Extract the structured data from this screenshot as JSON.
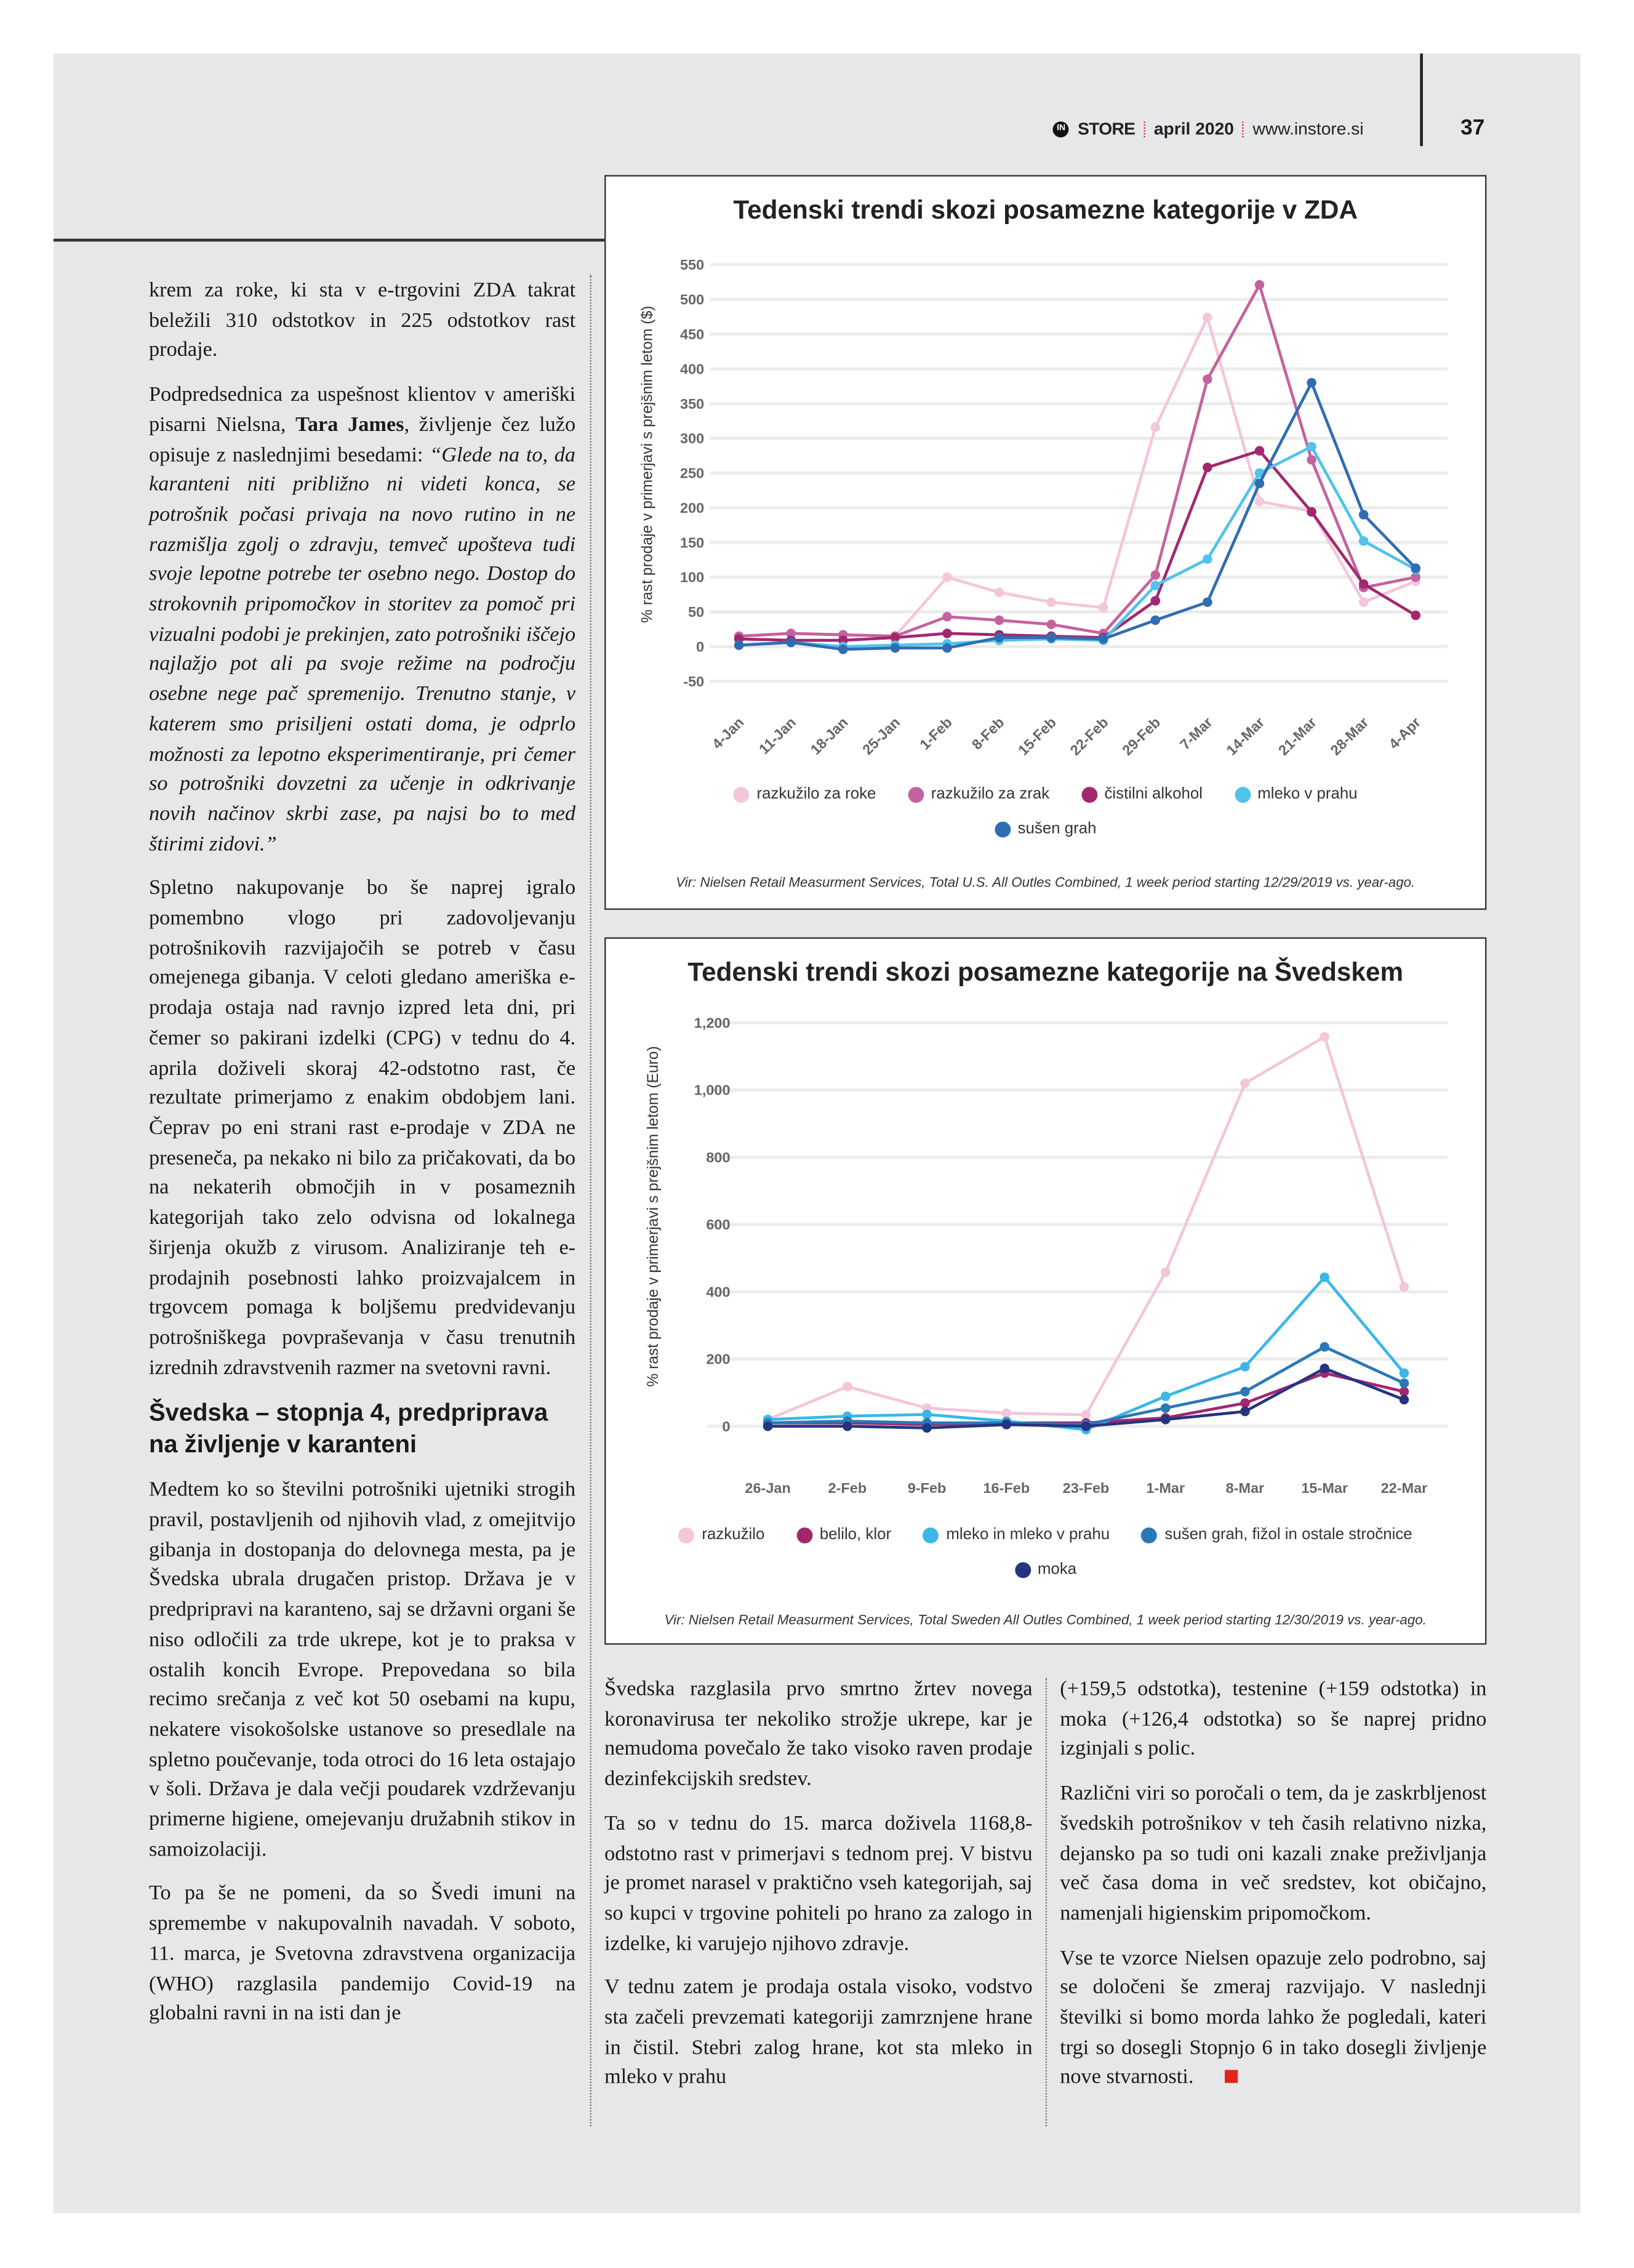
{
  "header": {
    "brand": "STORE",
    "brand_logo": "IN",
    "issue": "april 2020",
    "url": "www.instore.si",
    "page_number": "37"
  },
  "left_column": {
    "p1": "krem za roke, ki sta v e-trgovini ZDA takrat beležili 310 odstotkov in 225 odstotkov rast prodaje.",
    "p2_pre": "Podpredsednica za uspešnost klientov v ameriški pisarni Nielsna, ",
    "p2_name": "Tara James",
    "p2_mid": ", življenje čez lužo opisuje z naslednjimi besedami: ",
    "p2_quote": "“Glede na to, da karanteni niti približno ni videti konca, se potrošnik počasi privaja na novo rutino in ne razmišlja zgolj o zdravju, temveč upošteva tudi svoje lepotne potrebe ter osebno nego. Dostop do strokovnih pripomočkov in storitev za pomoč pri vizualni podobi je prekinjen, zato potrošniki iščejo najlažjo pot ali pa svoje režime na področju osebne nege pač spremenijo. Trenutno stanje, v katerem smo prisiljeni ostati doma, je odprlo možnosti za lepotno eksperimentiranje, pri čemer so potrošniki dovzetni za učenje in odkrivanje novih načinov skrbi zase, pa najsi bo to med štirimi zidovi.”",
    "p3": "Spletno nakupovanje bo še naprej igralo pomembno vlogo pri zadovoljevanju potrošnikovih razvijajočih se potreb v času omejenega gibanja. V celoti gledano ameriška e-prodaja ostaja nad ravnjo izpred leta dni, pri čemer so pakirani izdelki (CPG) v tednu do 4. aprila doživeli skoraj 42-odstotno rast, če rezultate primerjamo z enakim obdobjem lani. Čeprav po eni strani rast e-prodaje v ZDA ne preseneča, pa nekako ni bilo za pričakovati, da bo na nekaterih območjih in v posameznih kategorijah tako zelo odvisna od lokalnega širjenja okužb z virusom. Analiziranje teh e-prodajnih posebnosti lahko proizvajalcem in trgovcem pomaga k boljšemu predvidevanju potrošniškega povpraševanja v času trenutnih izrednih zdravstvenih razmer na svetovni ravni.",
    "heading": "Švedska – stopnja 4, predpriprava na življenje v karanteni",
    "p4": "Medtem ko so številni potrošniki ujetniki strogih pravil, postavljenih od njihovih vlad, z omejitvijo gibanja in dostopanja do delovnega mesta, pa je Švedska ubrala drugačen pristop. Država je v predpripravi na karanteno, saj se državni organi še niso odločili za trde ukrepe, kot je to praksa v ostalih koncih Evrope. Prepovedana so bila recimo srečanja z več kot 50 osebami na kupu, nekatere visokošolske ustanove so presedlale na spletno poučevanje, toda otroci do 16 leta ostajajo v šoli. Država je dala večji poudarek vzdrževanju primerne higiene, omejevanju družabnih stikov in samoizolaciji.",
    "p5": "To pa še ne pomeni, da so Švedi imuni na spremembe v nakupovalnih navadah. V soboto, 11. marca, je Svetovna zdravstvena organizacija (WHO) razglasila pandemijo Covid-19 na globalni ravni in na isti dan je"
  },
  "middle_column": {
    "p1": "Švedska razglasila prvo smrtno žrtev novega koronavirusa ter nekoliko strožje ukrepe, kar je nemudoma povečalo že tako visoko raven prodaje dezinfekcijskih sredstev.",
    "p2": "Ta so v tednu do 15. marca doživela 1168,8-odstotno rast v primerjavi s tednom prej. V bistvu je promet narasel v praktično vseh kategorijah, saj so kupci v trgovine pohiteli po hrano za zalogo in izdelke, ki varujejo njihovo zdravje.",
    "p3": "V tednu zatem je prodaja ostala visoko, vodstvo sta začeli prevzemati kategoriji zamrznjene hrane in čistil. Stebri zalog hrane, kot sta mleko in mleko v prahu"
  },
  "right_column": {
    "p1": "(+159,5 odstotka), testenine (+159 odstotka) in moka (+126,4 odstotka) so še naprej pridno izginjali s polic.",
    "p2": "Različni viri so poročali o tem, da je zaskrbljenost švedskih potrošnikov v teh časih relativno nizka, dejansko pa so tudi oni kazali znake preživljanja več časa doma in več sredstev, kot običajno, namenjali higienskim pripomočkom.",
    "p3": "Vse te vzorce Nielsen opazuje zelo podrobno, saj se določeni še zmeraj razvijajo. V naslednji številki si bomo morda lahko že pogledali, kateri trgi so dosegli Stopnjo 6 in tako dosegli življenje nove stvarnosti."
  },
  "accent_color": "#e2231a",
  "chart_data": [
    {
      "type": "line",
      "title": "Tedenski trendi skozi posamezne kategorije v ZDA",
      "ylabel": "% rast prodaje v primerjavi s prejšnim letom ($)",
      "xlabel": "",
      "ylim": [
        -50,
        550
      ],
      "yticks": [
        "-50",
        "0",
        "50",
        "100",
        "150",
        "200",
        "250",
        "300",
        "350",
        "400",
        "450",
        "500",
        "550"
      ],
      "grid": true,
      "legend": "bottom",
      "categories": [
        "4-Jan",
        "11-Jan",
        "18-Jan",
        "25-Jan",
        "1-Feb",
        "8-Feb",
        "15-Feb",
        "22-Feb",
        "29-Feb",
        "7-Mar",
        "14-Mar",
        "21-Mar",
        "28-Mar",
        "4-Apr"
      ],
      "series": [
        {
          "name": "razkužilo za roke",
          "color": "#f3c6da",
          "values": [
            15,
            19,
            17,
            15,
            100,
            78,
            64,
            56,
            316,
            474,
            209,
            195,
            64,
            94
          ]
        },
        {
          "name": "razkužilo za zrak",
          "color": "#c4629f",
          "values": [
            15,
            19,
            17,
            15,
            43,
            38,
            32,
            19,
            103,
            385,
            521,
            269,
            85,
            100
          ]
        },
        {
          "name": "čistilni alkohol",
          "color": "#a3276f",
          "values": [
            11,
            9,
            9,
            13,
            19,
            17,
            15,
            13,
            66,
            258,
            282,
            194,
            90,
            45
          ]
        },
        {
          "name": "mleko v prahu",
          "color": "#4fc3ea",
          "values": [
            2,
            6,
            0,
            2,
            4,
            9,
            11,
            9,
            88,
            126,
            250,
            288,
            152,
            111
          ]
        },
        {
          "name": "sušen grah",
          "color": "#2f6db3",
          "values": [
            2,
            6,
            -4,
            -2,
            -2,
            13,
            13,
            11,
            38,
            64,
            235,
            380,
            190,
            113
          ]
        }
      ],
      "source": "Vir: Nielsen Retail Measurment Services, Total U.S. All Outles Combined, 1 week period starting 12/29/2019 vs. year-ago."
    },
    {
      "type": "line",
      "title": "Tedenski trendi skozi posamezne kategorije na Švedskem",
      "ylabel": "% rast prodaje v primerjavi s prejšnim letom (Euro)",
      "xlabel": "",
      "ylim": [
        0,
        1200
      ],
      "yticks": [
        "0",
        "200",
        "400",
        "600",
        "800",
        "1,000",
        "1,200"
      ],
      "grid": true,
      "legend": "bottom",
      "categories": [
        "26-Jan",
        "2-Feb",
        "9-Feb",
        "16-Feb",
        "23-Feb",
        "1-Mar",
        "8-Mar",
        "15-Mar",
        "22-Mar"
      ],
      "series": [
        {
          "name": "razkužilo",
          "color": "#f3c6da",
          "values": [
            20,
            118,
            54,
            39,
            34,
            458,
            1020,
            1158,
            414
          ]
        },
        {
          "name": "belilo, klor",
          "color": "#a3276f",
          "values": [
            10,
            10,
            5,
            10,
            10,
            25,
            69,
            158,
            103
          ]
        },
        {
          "name": "mleko in mleko v prahu",
          "color": "#3ab7e8",
          "values": [
            20,
            30,
            35,
            15,
            -10,
            89,
            177,
            443,
            158
          ]
        },
        {
          "name": "sušen grah, fižol in ostale stročnice",
          "color": "#2a78b8",
          "values": [
            10,
            15,
            10,
            10,
            5,
            54,
            103,
            236,
            128
          ]
        },
        {
          "name": "moka",
          "color": "#26337f",
          "values": [
            0,
            0,
            -5,
            5,
            0,
            20,
            44,
            172,
            79
          ]
        }
      ],
      "source": "Vir: Nielsen Retail Measurment Services, Total Sweden All Outles Combined, 1 week period starting 12/30/2019 vs. year-ago."
    }
  ]
}
